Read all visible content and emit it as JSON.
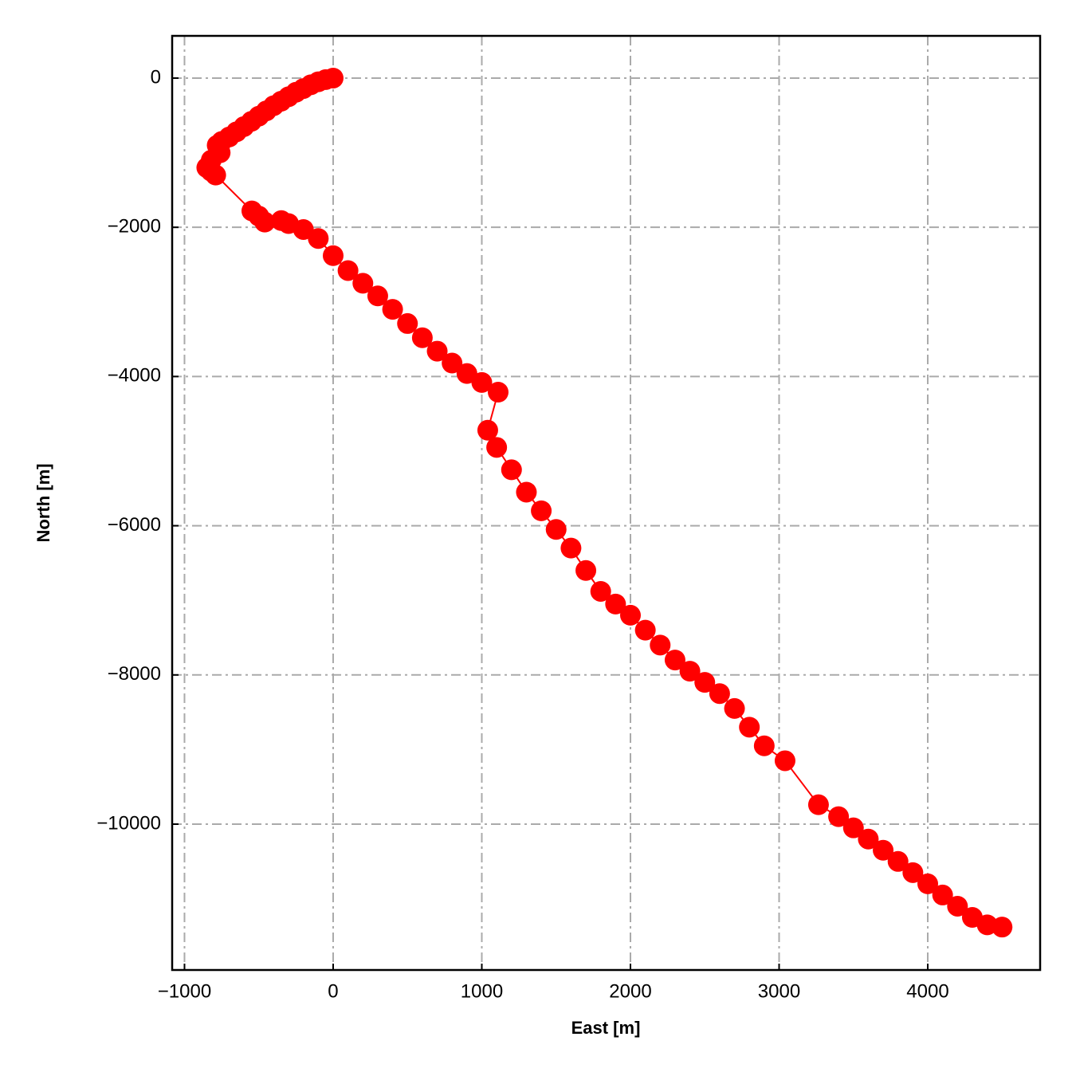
{
  "chart_data": {
    "type": "line",
    "markers": true,
    "color": "#ff0000",
    "xlabel": "East [m]",
    "ylabel": "North [m]",
    "x": [
      0,
      -50,
      -100,
      -150,
      -200,
      -250,
      -300,
      -350,
      -400,
      -450,
      -500,
      -550,
      -600,
      -650,
      -700,
      -750,
      -780,
      -760,
      -820,
      -850,
      -820,
      -790,
      -547,
      -500,
      -460,
      -349,
      -300,
      -200,
      -100,
      0,
      100,
      200,
      300,
      400,
      500,
      600,
      700,
      800,
      900,
      1000,
      1110,
      1040,
      1100,
      1200,
      1300,
      1400,
      1500,
      1600,
      1700,
      1800,
      1900,
      2000,
      2100,
      2200,
      2300,
      2400,
      2500,
      2600,
      2700,
      2800,
      2900,
      3040,
      3265,
      3400,
      3500,
      3600,
      3700,
      3800,
      3900,
      4000,
      4100,
      4200,
      4300,
      4400,
      4500
    ],
    "values": [
      0,
      -20,
      -50,
      -90,
      -140,
      -190,
      -250,
      -310,
      -370,
      -440,
      -510,
      -580,
      -650,
      -720,
      -790,
      -850,
      -900,
      -1000,
      -1100,
      -1200,
      -1250,
      -1300,
      -1780,
      -1850,
      -1930,
      -1910,
      -1950,
      -2030,
      -2150,
      -2380,
      -2580,
      -2750,
      -2920,
      -3100,
      -3290,
      -3480,
      -3660,
      -3820,
      -3960,
      -4080,
      -4210,
      -4720,
      -4950,
      -5250,
      -5550,
      -5800,
      -6050,
      -6300,
      -6600,
      -6880,
      -7050,
      -7200,
      -7400,
      -7600,
      -7800,
      -7950,
      -8100,
      -8250,
      -8450,
      -8700,
      -8950,
      -9150,
      -9740,
      -9900,
      -10050,
      -10200,
      -10350,
      -10500,
      -10650,
      -10800,
      -10950,
      -11100,
      -11250,
      -11350,
      -11380
    ],
    "xlim": [
      -1083,
      4756
    ],
    "ylim": [
      566,
      -11955
    ],
    "xticks": [
      {
        "value": -1000,
        "label": "−1000"
      },
      0,
      1000,
      2000,
      3000,
      4000
    ],
    "yticks": [
      0,
      {
        "value": -2000,
        "label": "−2000"
      },
      {
        "value": -4000,
        "label": "−4000"
      },
      {
        "value": -6000,
        "label": "−6000"
      },
      {
        "value": -8000,
        "label": "−8000"
      },
      {
        "value": -10000,
        "label": "−10000"
      }
    ],
    "grid": true
  }
}
